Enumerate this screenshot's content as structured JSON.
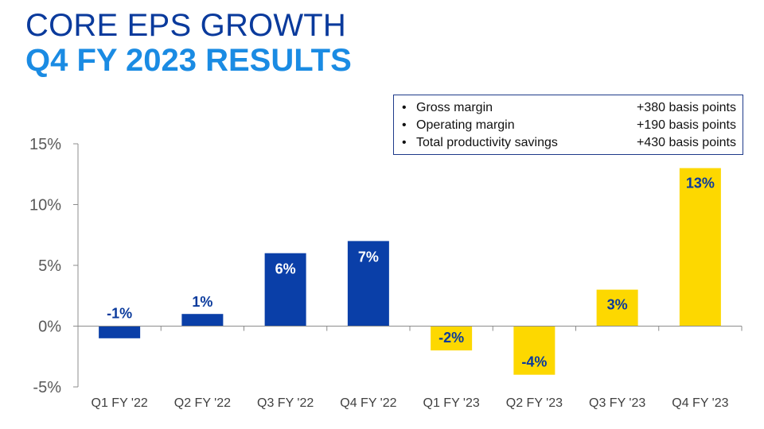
{
  "header": {
    "title_line1": "CORE EPS GROWTH",
    "title_line2": "Q4 FY 2023 RESULTS"
  },
  "callout": {
    "items": [
      {
        "label": "Gross margin",
        "value": "+380 basis points"
      },
      {
        "label": "Operating margin",
        "value": "+190 basis points"
      },
      {
        "label": "Total productivity savings",
        "value": "+430 basis points"
      }
    ]
  },
  "colors": {
    "fy22": "#0a3fa8",
    "fy23": "#fdd800",
    "title_dark": "#0a3a9c",
    "title_light": "#1a8be3"
  },
  "chart_data": {
    "type": "bar",
    "categories": [
      "Q1 FY '22",
      "Q2 FY '22",
      "Q3 FY '22",
      "Q4 FY '22",
      "Q1 FY '23",
      "Q2 FY '23",
      "Q3 FY '23",
      "Q4 FY '23"
    ],
    "values": [
      -1,
      1,
      6,
      7,
      -2,
      -4,
      3,
      13
    ],
    "labels": [
      "-1%",
      "1%",
      "6%",
      "7%",
      "-2%",
      "-4%",
      "3%",
      "13%"
    ],
    "bar_colors": [
      "#0a3fa8",
      "#0a3fa8",
      "#0a3fa8",
      "#0a3fa8",
      "#fdd800",
      "#fdd800",
      "#fdd800",
      "#fdd800"
    ],
    "yticks": [
      "15%",
      "10%",
      "5%",
      "0%",
      "-5%"
    ],
    "ytick_values": [
      15,
      10,
      5,
      0,
      -5
    ],
    "ylim": [
      -5,
      15
    ],
    "grid": false,
    "legend": "none"
  }
}
